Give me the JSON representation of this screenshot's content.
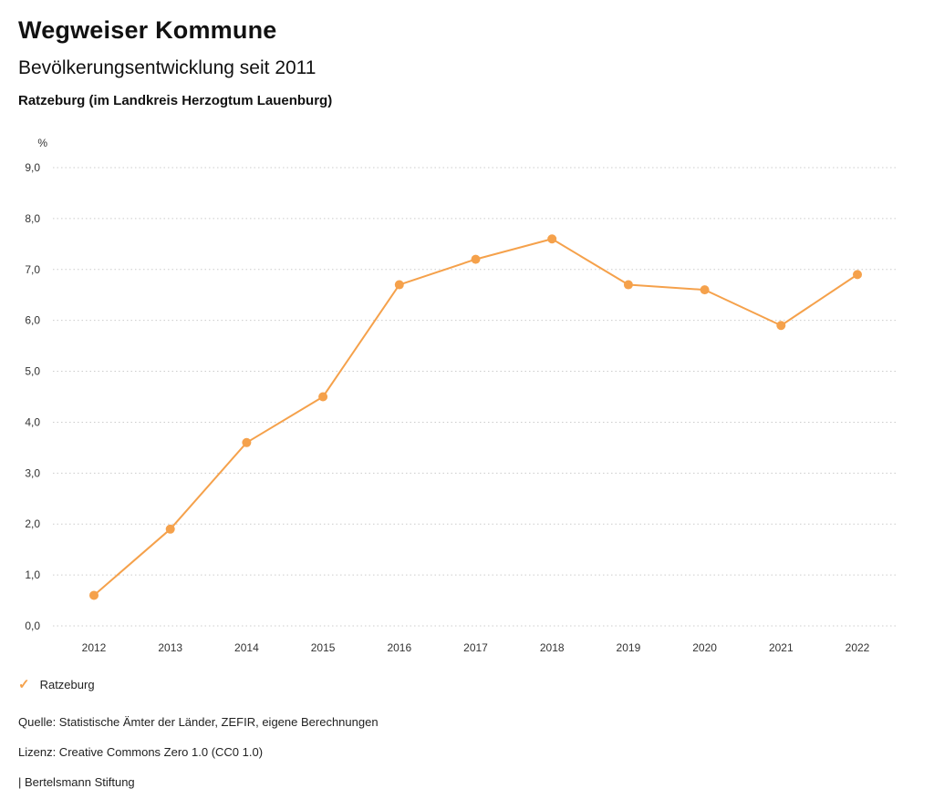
{
  "header": {
    "title": "Wegweiser Kommune",
    "subtitle": "Bevölkerungsentwicklung seit 2011",
    "region": "Ratzeburg (im Landkreis Herzogtum Lauenburg)"
  },
  "chart_data": {
    "type": "line",
    "title": "Bevölkerungsentwicklung seit 2011 — Ratzeburg (im Landkreis Herzogtum Lauenburg)",
    "unit_label": "%",
    "xlabel": "",
    "ylabel": "%",
    "categories": [
      "2012",
      "2013",
      "2014",
      "2015",
      "2016",
      "2017",
      "2018",
      "2019",
      "2020",
      "2021",
      "2022"
    ],
    "series": [
      {
        "name": "Ratzeburg",
        "color": "#F5A14B",
        "values": [
          0.6,
          1.9,
          3.6,
          4.5,
          6.7,
          7.2,
          7.6,
          6.7,
          6.6,
          5.9,
          6.9
        ]
      }
    ],
    "ylim": [
      0,
      9
    ],
    "ytick_step": 1,
    "ytick_format": "decimal-comma-one-digit",
    "grid": "horizontal-dotted",
    "legend_position": "bottom-left",
    "marker": "filled-circle"
  },
  "legend": {
    "items": [
      {
        "label": "Ratzeburg",
        "marker": "check-icon",
        "color": "#F5A14B"
      }
    ]
  },
  "footer": {
    "source": "Quelle: Statistische Ämter der Länder, ZEFIR, eigene Berechnungen",
    "license": "Lizenz: Creative Commons Zero 1.0 (CC0 1.0)",
    "attribution": "| Bertelsmann Stiftung"
  }
}
